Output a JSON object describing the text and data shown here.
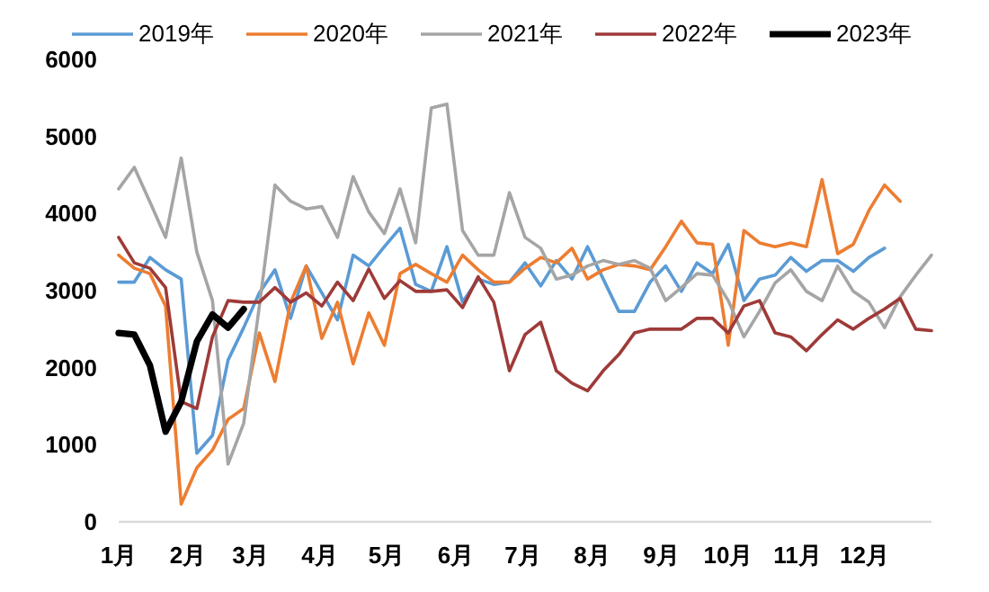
{
  "chart_data": {
    "type": "line",
    "x": [
      "--01-01",
      "--01-08",
      "--01-15",
      "--01-22",
      "--01-29",
      "--02-05",
      "--02-12",
      "--02-19",
      "--02-26",
      "--03-05",
      "--03-12",
      "--03-19",
      "--03-26",
      "--04-02",
      "--04-09",
      "--04-16",
      "--04-23",
      "--04-30",
      "--05-07",
      "--05-14",
      "--05-21",
      "--05-28",
      "--06-04",
      "--06-11",
      "--06-18",
      "--06-25",
      "--07-02",
      "--07-09",
      "--07-16",
      "--07-23",
      "--07-30",
      "--08-06",
      "--08-13",
      "--08-20",
      "--08-27",
      "--09-03",
      "--09-10",
      "--09-17",
      "--09-24",
      "--10-01",
      "--10-08",
      "--10-15",
      "--10-22",
      "--10-29",
      "--11-05",
      "--11-12",
      "--11-19",
      "--11-26",
      "--12-03",
      "--12-10",
      "--12-17",
      "--12-24",
      "--12-31"
    ],
    "xlim": [
      "--01-01",
      "--12-31"
    ],
    "xticks": [
      {
        "value": "--01-01",
        "label": "1月"
      },
      {
        "value": "--02-01",
        "label": "2月"
      },
      {
        "value": "--03-01",
        "label": "3月"
      },
      {
        "value": "--04-01",
        "label": "4月"
      },
      {
        "value": "--05-01",
        "label": "5月"
      },
      {
        "value": "--06-01",
        "label": "6月"
      },
      {
        "value": "--07-01",
        "label": "7月"
      },
      {
        "value": "--08-01",
        "label": "8月"
      },
      {
        "value": "--09-01",
        "label": "9月"
      },
      {
        "value": "--10-01",
        "label": "10月"
      },
      {
        "value": "--11-01",
        "label": "11月"
      },
      {
        "value": "--12-01",
        "label": "12月"
      }
    ],
    "ylim": [
      0,
      6000
    ],
    "yticks": [
      0,
      1000,
      2000,
      3000,
      4000,
      5000,
      6000
    ],
    "grid": false,
    "legend": "top",
    "marker": "none",
    "line_style": "solid",
    "series": [
      {
        "name": "2019年",
        "color": "#5b9bd5",
        "values": [
          3110,
          3110,
          3430,
          3270,
          3150,
          890,
          1120,
          2100,
          2520,
          2970,
          3270,
          2640,
          3320,
          2970,
          2620,
          3460,
          3320,
          3570,
          3810,
          3080,
          2990,
          3570,
          2850,
          3150,
          3080,
          3110,
          3360,
          3060,
          3390,
          3150,
          3570,
          3150,
          2730,
          2730,
          3110,
          3320,
          2990,
          3360,
          3220,
          3600,
          2870,
          3150,
          3200,
          3430,
          3250,
          3390,
          3390,
          3250,
          3430,
          3550,
          null,
          null,
          null
        ]
      },
      {
        "name": "2020年",
        "color": "#ed7d31",
        "values": [
          3460,
          3290,
          3220,
          2800,
          230,
          700,
          930,
          1330,
          1470,
          2450,
          1820,
          2850,
          3320,
          2380,
          2850,
          2050,
          2710,
          2290,
          3220,
          3340,
          3220,
          3110,
          3460,
          3270,
          3110,
          3110,
          3290,
          3430,
          3360,
          3550,
          3150,
          3270,
          3340,
          3320,
          3270,
          3570,
          3900,
          3620,
          3600,
          2290,
          3780,
          3620,
          3570,
          3620,
          3570,
          4440,
          3480,
          3600,
          4040,
          4370,
          4160,
          null,
          null
        ]
      },
      {
        "name": "2021年",
        "color": "#a5a5a5",
        "values": [
          4320,
          4600,
          4150,
          3690,
          4720,
          3500,
          2870,
          750,
          1280,
          2800,
          4370,
          4160,
          4060,
          4090,
          3690,
          4480,
          4020,
          3740,
          4320,
          3620,
          5370,
          5420,
          3780,
          3460,
          3460,
          4270,
          3690,
          3550,
          3150,
          3200,
          3320,
          3390,
          3340,
          3390,
          3290,
          2870,
          3040,
          3220,
          3200,
          2870,
          2400,
          2730,
          3100,
          3270,
          2990,
          2870,
          3320,
          2990,
          2850,
          2520,
          2920,
          3200,
          3460
        ]
      },
      {
        "name": "2022年",
        "color": "#9e3a38",
        "values": [
          3690,
          3360,
          3290,
          3040,
          1560,
          1470,
          2400,
          2870,
          2850,
          2850,
          3040,
          2850,
          2970,
          2800,
          3110,
          2870,
          3280,
          2900,
          3130,
          2990,
          2990,
          3010,
          2780,
          3180,
          2850,
          1960,
          2430,
          2590,
          1960,
          1800,
          1700,
          1960,
          2170,
          2450,
          2500,
          2500,
          2500,
          2640,
          2640,
          2450,
          2800,
          2870,
          2450,
          2400,
          2220,
          2430,
          2620,
          2500,
          2640,
          2760,
          2900,
          2500,
          2480
        ]
      },
      {
        "name": "2023年",
        "color": "#000000",
        "values": [
          2450,
          2430,
          2030,
          1170,
          1560,
          2340,
          2690,
          2520,
          2760,
          null,
          null,
          null,
          null,
          null,
          null,
          null,
          null,
          null,
          null,
          null,
          null,
          null,
          null,
          null,
          null,
          null,
          null,
          null,
          null,
          null,
          null,
          null,
          null,
          null,
          null,
          null,
          null,
          null,
          null,
          null,
          null,
          null,
          null,
          null,
          null,
          null,
          null,
          null,
          null,
          null,
          null,
          null,
          null
        ]
      }
    ]
  }
}
